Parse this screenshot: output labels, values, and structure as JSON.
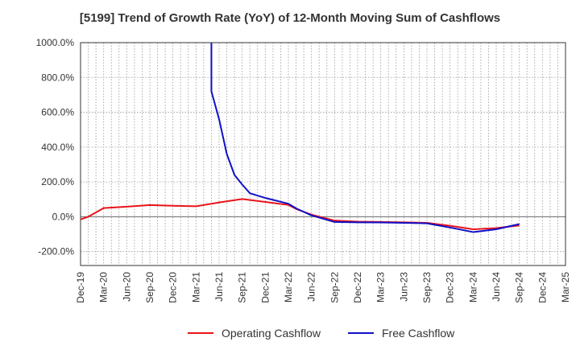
{
  "chart_data": {
    "type": "line",
    "title": "[5199]  Trend of Growth Rate (YoY) of 12-Month Moving Sum of Cashflows",
    "xlabel": "",
    "ylabel": "",
    "ylim": [
      -280,
      1000
    ],
    "yticks": [
      -200,
      0,
      200,
      400,
      600,
      800,
      1000
    ],
    "ytick_labels": [
      "-200.0%",
      "0.0%",
      "200.0%",
      "400.0%",
      "600.0%",
      "800.0%",
      "1000.0%"
    ],
    "x_range": [
      "2019-12",
      "2025-03"
    ],
    "xticks": [
      "2019-12",
      "2020-03",
      "2020-06",
      "2020-09",
      "2020-12",
      "2021-03",
      "2021-06",
      "2021-09",
      "2021-12",
      "2022-03",
      "2022-06",
      "2022-09",
      "2022-12",
      "2023-03",
      "2023-06",
      "2023-09",
      "2023-12",
      "2024-03",
      "2024-06",
      "2024-09",
      "2024-12",
      "2025-03"
    ],
    "xtick_labels": [
      "Dec-19",
      "Mar-20",
      "Jun-20",
      "Sep-20",
      "Dec-20",
      "Mar-21",
      "Jun-21",
      "Sep-21",
      "Dec-21",
      "Mar-22",
      "Jun-22",
      "Sep-22",
      "Dec-22",
      "Mar-23",
      "Jun-23",
      "Sep-23",
      "Dec-23",
      "Mar-24",
      "Jun-24",
      "Sep-24",
      "Dec-24",
      "Mar-25"
    ],
    "grid": true,
    "legend_position": "bottom",
    "series": [
      {
        "name": "Operating Cashflow",
        "color": "#e8131b",
        "points": [
          [
            "2019-12",
            -15
          ],
          [
            "2020-01",
            0
          ],
          [
            "2020-02",
            25
          ],
          [
            "2020-03",
            50
          ],
          [
            "2020-06",
            58
          ],
          [
            "2020-09",
            67
          ],
          [
            "2020-12",
            63
          ],
          [
            "2021-03",
            60
          ],
          [
            "2021-06",
            82
          ],
          [
            "2021-09",
            102
          ],
          [
            "2021-12",
            85
          ],
          [
            "2022-03",
            68
          ],
          [
            "2022-04",
            45
          ],
          [
            "2022-06",
            12
          ],
          [
            "2022-09",
            -22
          ],
          [
            "2022-12",
            -28
          ],
          [
            "2023-03",
            -30
          ],
          [
            "2023-06",
            -32
          ],
          [
            "2023-09",
            -35
          ],
          [
            "2023-12",
            -52
          ],
          [
            "2024-03",
            -72
          ],
          [
            "2024-06",
            -65
          ],
          [
            "2024-09",
            -50
          ]
        ]
      },
      {
        "name": "Free Cashflow",
        "color": "#1010c8",
        "points": [
          [
            "2021-05",
            1000
          ],
          [
            "2021-05",
            720
          ],
          [
            "2021-06",
            560
          ],
          [
            "2021-07",
            360
          ],
          [
            "2021-08",
            240
          ],
          [
            "2021-09",
            185
          ],
          [
            "2021-10",
            135
          ],
          [
            "2021-12",
            108
          ],
          [
            "2022-03",
            75
          ],
          [
            "2022-04",
            48
          ],
          [
            "2022-06",
            8
          ],
          [
            "2022-09",
            -30
          ],
          [
            "2022-12",
            -32
          ],
          [
            "2023-03",
            -33
          ],
          [
            "2023-06",
            -35
          ],
          [
            "2023-09",
            -38
          ],
          [
            "2023-12",
            -62
          ],
          [
            "2024-03",
            -88
          ],
          [
            "2024-06",
            -72
          ],
          [
            "2024-09",
            -42
          ]
        ]
      }
    ]
  }
}
